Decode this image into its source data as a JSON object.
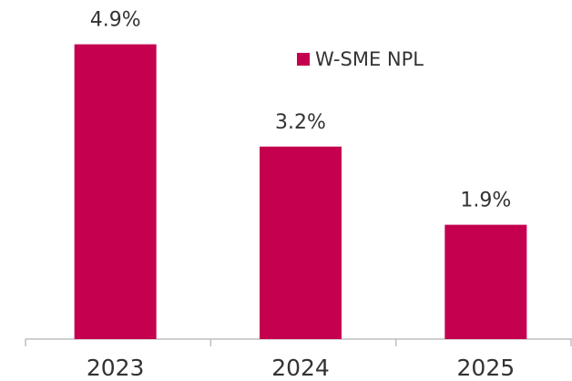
{
  "chart_data": {
    "type": "bar",
    "categories": [
      "2023",
      "2024",
      "2025"
    ],
    "series": [
      {
        "name": "W-SME NPL",
        "color": "#c4004f",
        "values": [
          4.9,
          3.2,
          1.9
        ],
        "value_labels": [
          "4.9%",
          "3.2%",
          "1.9%"
        ]
      }
    ],
    "ylim": [
      0,
      5
    ]
  }
}
